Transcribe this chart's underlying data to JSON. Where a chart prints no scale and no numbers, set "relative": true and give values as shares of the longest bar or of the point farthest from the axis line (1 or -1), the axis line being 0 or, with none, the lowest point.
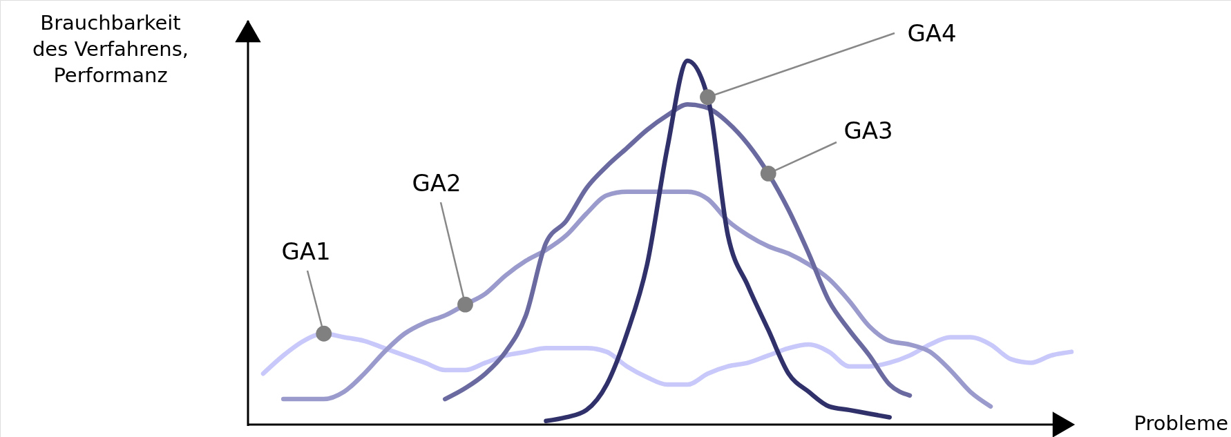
{
  "chart_data": {
    "type": "line",
    "relative": true,
    "xlabel": "Probleme",
    "ylabel": "Brauchbarkeit des Verfahrens, Performanz",
    "legend": false,
    "line_style": "solid",
    "categories": [
      null,
      null,
      null,
      null,
      null,
      null,
      null,
      null,
      null,
      null,
      null,
      null,
      null,
      null,
      null,
      null,
      null,
      null,
      null,
      null,
      null,
      null,
      null,
      null,
      null,
      null,
      null,
      null,
      null,
      null,
      null,
      null,
      null,
      null,
      null,
      null,
      null,
      null,
      null,
      null,
      null
    ],
    "series": [
      {
        "name": "GA1",
        "color": "#c8c8fa",
        "values": [
          0.14,
          0.19,
          0.23,
          0.25,
          0.24,
          0.23,
          0.21,
          0.19,
          0.17,
          0.15,
          0.15,
          0.17,
          0.19,
          0.2,
          0.21,
          0.21,
          0.21,
          0.2,
          0.16,
          0.13,
          0.11,
          0.11,
          0.14,
          0.16,
          0.17,
          0.19,
          0.21,
          0.22,
          0.2,
          0.16,
          0.16,
          0.17,
          0.19,
          0.22,
          0.24,
          0.24,
          0.22,
          0.18,
          0.17,
          0.19,
          0.2
        ]
      },
      {
        "name": "GA2",
        "color": "#9a9acc",
        "values": [
          null,
          0.07,
          0.07,
          0.07,
          0.09,
          0.14,
          0.2,
          0.25,
          0.28,
          0.3,
          0.33,
          0.36,
          0.41,
          0.45,
          0.48,
          0.52,
          0.58,
          0.63,
          0.64,
          0.64,
          0.64,
          0.64,
          0.62,
          0.56,
          0.52,
          0.49,
          0.47,
          0.44,
          0.4,
          0.34,
          0.27,
          0.23,
          0.22,
          0.2,
          0.15,
          0.09,
          0.05,
          null,
          null,
          null,
          null
        ]
      },
      {
        "name": "GA3",
        "color": "#6a6aa0",
        "values": [
          null,
          null,
          null,
          null,
          null,
          null,
          null,
          null,
          null,
          0.07,
          0.1,
          0.14,
          0.2,
          0.3,
          0.5,
          0.56,
          0.65,
          0.71,
          0.76,
          0.81,
          0.85,
          0.88,
          0.87,
          0.83,
          0.77,
          0.69,
          0.59,
          0.47,
          0.34,
          0.26,
          0.19,
          0.11,
          0.08,
          null,
          null,
          null,
          null,
          null,
          null,
          null,
          null
        ]
      },
      {
        "name": "GA4",
        "color": "#30306a",
        "values": [
          null,
          null,
          null,
          null,
          null,
          null,
          null,
          null,
          null,
          null,
          null,
          null,
          null,
          null,
          0.01,
          0.02,
          0.04,
          0.11,
          0.25,
          0.44,
          0.76,
          1.0,
          0.9,
          0.52,
          0.38,
          0.26,
          0.14,
          0.09,
          0.05,
          0.04,
          0.03,
          0.02,
          null,
          null,
          null,
          null,
          null,
          null,
          null,
          null,
          null
        ]
      }
    ]
  }
}
